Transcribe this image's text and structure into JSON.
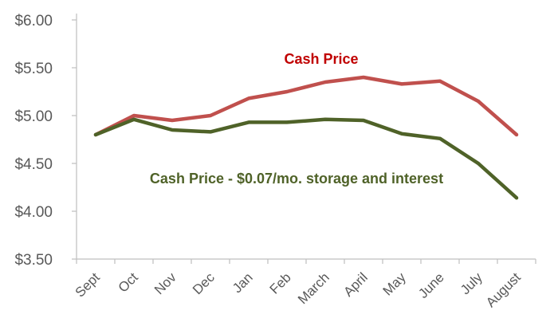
{
  "chart_data": {
    "type": "line",
    "title": "",
    "xlabel": "",
    "ylabel": "",
    "categories": [
      "Sept",
      "Oct",
      "Nov",
      "Dec",
      "Jan",
      "Feb",
      "March",
      "April",
      "May",
      "June",
      "July",
      "August"
    ],
    "ylim": [
      3.5,
      6.0
    ],
    "yticks": [
      3.5,
      4.0,
      4.5,
      5.0,
      5.5,
      6.0
    ],
    "ytick_labels": [
      "$3.50",
      "$4.00",
      "$4.50",
      "$5.00",
      "$5.50",
      "$6.00"
    ],
    "grid": false,
    "series": [
      {
        "name": "Cash Price",
        "color": "#c0504d",
        "label_color": "#c00000",
        "values": [
          4.8,
          5.0,
          4.95,
          5.0,
          5.18,
          5.25,
          5.35,
          5.4,
          5.33,
          5.36,
          5.15,
          4.8
        ]
      },
      {
        "name": "Cash Price - $0.07/mo. storage and interest",
        "color": "#4f6228",
        "label_color": "#4f6228",
        "values": [
          4.8,
          4.96,
          4.85,
          4.83,
          4.93,
          4.93,
          4.96,
          4.95,
          4.81,
          4.76,
          4.5,
          4.14
        ]
      }
    ]
  }
}
